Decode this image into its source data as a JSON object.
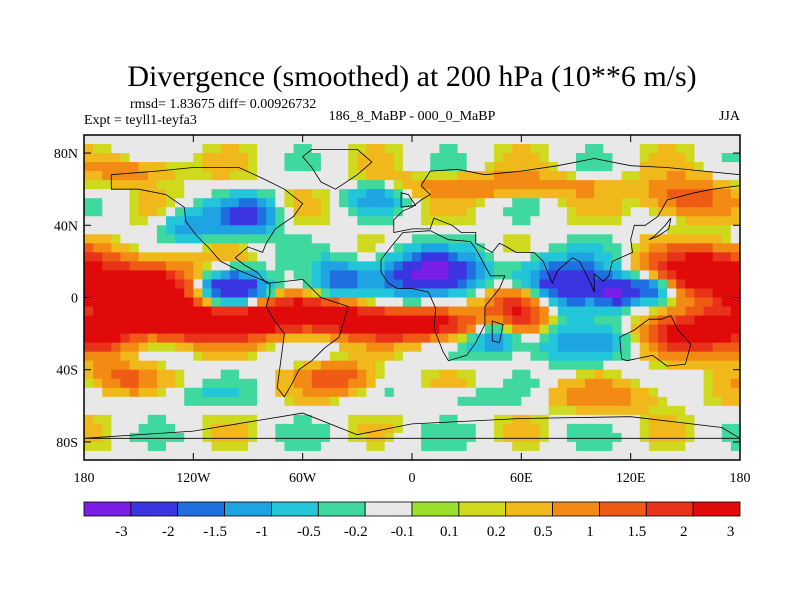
{
  "chart_data": {
    "type": "heatmap",
    "title": "Divergence (smoothed) at 200 hPa (10**6 m/s)",
    "stats": "rmsd= 1.83675 diff= 0.00926732",
    "left_label": "Expt = teyll1-teyfa3",
    "center_label": "186_8_MaBP - 000_0_MaBP",
    "right_label": "JJA",
    "xlim": [
      -180,
      180
    ],
    "ylim": [
      -90,
      90
    ],
    "x_ticks": [
      {
        "value": -180,
        "label": "180"
      },
      {
        "value": -120,
        "label": "120W"
      },
      {
        "value": -60,
        "label": "60W"
      },
      {
        "value": 0,
        "label": "0"
      },
      {
        "value": 60,
        "label": "60E"
      },
      {
        "value": 120,
        "label": "120E"
      },
      {
        "value": 180,
        "label": "180"
      }
    ],
    "y_ticks": [
      {
        "value": 80,
        "label": "80N"
      },
      {
        "value": 40,
        "label": "40N"
      },
      {
        "value": 0,
        "label": "0"
      },
      {
        "value": -40,
        "label": "40S"
      },
      {
        "value": -80,
        "label": "80S"
      }
    ],
    "colorbar": {
      "colors": [
        "#7a1ee6",
        "#3a35e0",
        "#1f6fe0",
        "#1ea3e3",
        "#23c6d8",
        "#3fd9a0",
        "#e8e8e8",
        "#9adf2a",
        "#cfd91e",
        "#f0b81a",
        "#f38a14",
        "#ef5a14",
        "#e8321a",
        "#e10a0a"
      ],
      "labels": [
        "-3",
        "-2",
        "-1.5",
        "-1",
        "-0.5",
        "-0.2",
        "-0.1",
        "0.1",
        "0.2",
        "0.5",
        "1",
        "1.5",
        "2",
        "3"
      ]
    },
    "levels": [
      -3,
      -2,
      -1.5,
      -1,
      -0.5,
      -0.2,
      -0.1,
      0.1,
      0.2,
      0.5,
      1,
      1.5,
      2,
      3
    ],
    "field_blobs": [
      {
        "lon": -150,
        "lat": 2,
        "rlon": 40,
        "rlat": 16,
        "v": 3.5
      },
      {
        "lon": -170,
        "lat": -22,
        "rlon": 18,
        "rlat": 10,
        "v": 1.6
      },
      {
        "lon": -110,
        "lat": -15,
        "rlon": 40,
        "rlat": 9,
        "v": 3.2
      },
      {
        "lon": -60,
        "lat": -8,
        "rlon": 35,
        "rlat": 8,
        "v": 2.6
      },
      {
        "lon": -5,
        "lat": -15,
        "rlon": 40,
        "rlat": 8,
        "v": 3.2
      },
      {
        "lon": 60,
        "lat": -5,
        "rlon": 18,
        "rlat": 12,
        "v": 2.8
      },
      {
        "lon": 160,
        "lat": 15,
        "rlon": 28,
        "rlat": 12,
        "v": 3.0
      },
      {
        "lon": 155,
        "lat": -20,
        "rlon": 25,
        "rlat": 12,
        "v": 2.6
      },
      {
        "lon": -100,
        "lat": 5,
        "rlon": 20,
        "rlat": 10,
        "v": -3.5
      },
      {
        "lon": -40,
        "lat": 10,
        "rlon": 15,
        "rlat": 10,
        "v": -2.0
      },
      {
        "lon": 10,
        "lat": 13,
        "rlon": 25,
        "rlat": 12,
        "v": -3.6
      },
      {
        "lon": 85,
        "lat": 7,
        "rlon": 25,
        "rlat": 14,
        "v": -3.2
      },
      {
        "lon": 112,
        "lat": 3,
        "rlon": 10,
        "rlat": 8,
        "v": -2.5
      },
      {
        "lon": 130,
        "lat": 5,
        "rlon": 12,
        "rlat": 7,
        "v": -2.0
      },
      {
        "lon": -90,
        "lat": 45,
        "rlon": 15,
        "rlat": 10,
        "v": -2.5
      },
      {
        "lon": -120,
        "lat": 40,
        "rlon": 15,
        "rlat": 9,
        "v": -1.5
      },
      {
        "lon": -20,
        "lat": 55,
        "rlon": 15,
        "rlat": 8,
        "v": -1.2
      },
      {
        "lon": 45,
        "lat": -22,
        "rlon": 12,
        "rlat": 9,
        "v": -2.0
      },
      {
        "lon": 90,
        "lat": -25,
        "rlon": 30,
        "rlat": 10,
        "v": -1.2
      },
      {
        "lon": 50,
        "lat": 62,
        "rlon": 60,
        "rlat": 6,
        "v": 1.0
      },
      {
        "lon": 150,
        "lat": 55,
        "rlon": 20,
        "rlat": 10,
        "v": 1.5
      },
      {
        "lon": -150,
        "lat": 70,
        "rlon": 25,
        "rlat": 7,
        "v": 0.8
      },
      {
        "lon": -160,
        "lat": -45,
        "rlon": 18,
        "rlat": 8,
        "v": 1.2
      },
      {
        "lon": -40,
        "lat": -45,
        "rlon": 20,
        "rlat": 8,
        "v": 1.5
      },
      {
        "lon": 110,
        "lat": -55,
        "rlon": 40,
        "rlat": 8,
        "v": 0.6
      },
      {
        "lon": -120,
        "lat": -55,
        "rlon": 30,
        "rlat": 6,
        "v": -0.4
      },
      {
        "lon": 30,
        "lat": -55,
        "rlon": 25,
        "rlat": 5,
        "v": -0.5
      },
      {
        "lon": 0,
        "lat": -80,
        "rlon": 120,
        "rlat": 8,
        "v": -0.1
      }
    ],
    "land_outlines": [
      {
        "name": "north-america",
        "points": [
          [
            -165,
            68
          ],
          [
            -140,
            70
          ],
          [
            -120,
            72
          ],
          [
            -95,
            72
          ],
          [
            -80,
            65
          ],
          [
            -70,
            60
          ],
          [
            -60,
            52
          ],
          [
            -65,
            45
          ],
          [
            -75,
            38
          ],
          [
            -80,
            30
          ],
          [
            -82,
            25
          ],
          [
            -90,
            28
          ],
          [
            -97,
            22
          ],
          [
            -92,
            18
          ],
          [
            -85,
            14
          ],
          [
            -80,
            8
          ],
          [
            -78,
            8
          ],
          [
            -95,
            15
          ],
          [
            -105,
            20
          ],
          [
            -112,
            28
          ],
          [
            -118,
            34
          ],
          [
            -124,
            42
          ],
          [
            -125,
            50
          ],
          [
            -135,
            57
          ],
          [
            -150,
            60
          ],
          [
            -165,
            60
          ]
        ]
      },
      {
        "name": "south-america",
        "points": [
          [
            -78,
            8
          ],
          [
            -60,
            10
          ],
          [
            -50,
            0
          ],
          [
            -35,
            -5
          ],
          [
            -38,
            -15
          ],
          [
            -40,
            -22
          ],
          [
            -48,
            -28
          ],
          [
            -55,
            -35
          ],
          [
            -62,
            -40
          ],
          [
            -66,
            -48
          ],
          [
            -70,
            -55
          ],
          [
            -74,
            -50
          ],
          [
            -72,
            -35
          ],
          [
            -70,
            -20
          ],
          [
            -76,
            -12
          ],
          [
            -80,
            -5
          ],
          [
            -78,
            2
          ]
        ]
      },
      {
        "name": "greenland",
        "points": [
          [
            -55,
            82
          ],
          [
            -30,
            82
          ],
          [
            -22,
            75
          ],
          [
            -30,
            68
          ],
          [
            -42,
            60
          ],
          [
            -50,
            64
          ],
          [
            -55,
            72
          ],
          [
            -60,
            78
          ]
        ]
      },
      {
        "name": "eurasia",
        "points": [
          [
            -10,
            36
          ],
          [
            -10,
            43
          ],
          [
            -5,
            48
          ],
          [
            0,
            50
          ],
          [
            5,
            54
          ],
          [
            10,
            57
          ],
          [
            5,
            62
          ],
          [
            10,
            70
          ],
          [
            25,
            71
          ],
          [
            40,
            68
          ],
          [
            60,
            70
          ],
          [
            80,
            73
          ],
          [
            100,
            77
          ],
          [
            120,
            73
          ],
          [
            140,
            72
          ],
          [
            160,
            70
          ],
          [
            180,
            68
          ],
          [
            180,
            62
          ],
          [
            165,
            60
          ],
          [
            155,
            58
          ],
          [
            140,
            54
          ],
          [
            135,
            45
          ],
          [
            128,
            40
          ],
          [
            122,
            40
          ],
          [
            120,
            32
          ],
          [
            121,
            25
          ],
          [
            110,
            20
          ],
          [
            108,
            12
          ],
          [
            105,
            9
          ],
          [
            100,
            13
          ],
          [
            100,
            3
          ],
          [
            98,
            8
          ],
          [
            92,
            20
          ],
          [
            88,
            22
          ],
          [
            80,
            15
          ],
          [
            77,
            8
          ],
          [
            72,
            20
          ],
          [
            67,
            25
          ],
          [
            57,
            25
          ],
          [
            52,
            28
          ],
          [
            48,
            30
          ],
          [
            44,
            25
          ],
          [
            35,
            30
          ],
          [
            35,
            36
          ],
          [
            27,
            36
          ],
          [
            22,
            40
          ],
          [
            12,
            44
          ],
          [
            10,
            38
          ],
          [
            0,
            38
          ]
        ]
      },
      {
        "name": "africa",
        "points": [
          [
            -17,
            21
          ],
          [
            -10,
            30
          ],
          [
            -5,
            36
          ],
          [
            10,
            37
          ],
          [
            20,
            32
          ],
          [
            32,
            31
          ],
          [
            35,
            27
          ],
          [
            43,
            12
          ],
          [
            51,
            12
          ],
          [
            48,
            5
          ],
          [
            40,
            -5
          ],
          [
            40,
            -15
          ],
          [
            35,
            -25
          ],
          [
            30,
            -32
          ],
          [
            20,
            -35
          ],
          [
            17,
            -30
          ],
          [
            12,
            -17
          ],
          [
            13,
            -6
          ],
          [
            9,
            3
          ],
          [
            0,
            5
          ],
          [
            -8,
            5
          ],
          [
            -13,
            8
          ],
          [
            -17,
            14
          ]
        ]
      },
      {
        "name": "australia",
        "points": [
          [
            114,
            -22
          ],
          [
            122,
            -18
          ],
          [
            130,
            -12
          ],
          [
            137,
            -12
          ],
          [
            142,
            -10
          ],
          [
            146,
            -18
          ],
          [
            153,
            -26
          ],
          [
            150,
            -37
          ],
          [
            140,
            -38
          ],
          [
            132,
            -32
          ],
          [
            118,
            -35
          ],
          [
            115,
            -34
          ]
        ]
      },
      {
        "name": "antarctica",
        "points": [
          [
            -180,
            -78
          ],
          [
            -120,
            -74
          ],
          [
            -60,
            -64
          ],
          [
            -30,
            -76
          ],
          [
            0,
            -70
          ],
          [
            60,
            -67
          ],
          [
            120,
            -66
          ],
          [
            170,
            -72
          ],
          [
            180,
            -78
          ]
        ]
      },
      {
        "name": "madagascar",
        "points": [
          [
            44,
            -13
          ],
          [
            50,
            -15
          ],
          [
            48,
            -25
          ],
          [
            44,
            -24
          ]
        ]
      },
      {
        "name": "japan",
        "points": [
          [
            130,
            32
          ],
          [
            135,
            34
          ],
          [
            141,
            38
          ],
          [
            142,
            44
          ],
          [
            139,
            40
          ],
          [
            133,
            34
          ]
        ]
      },
      {
        "name": "uk",
        "points": [
          [
            -6,
            50
          ],
          [
            2,
            51
          ],
          [
            -2,
            57
          ],
          [
            -6,
            58
          ]
        ]
      }
    ]
  }
}
